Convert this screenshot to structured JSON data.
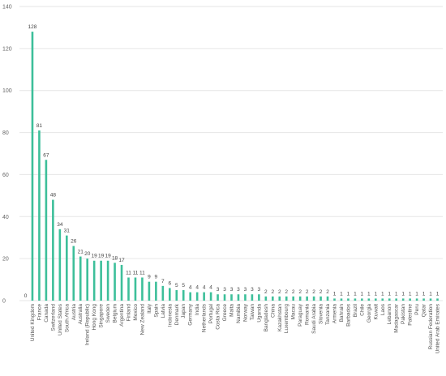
{
  "chart_data": {
    "type": "bar",
    "title": "",
    "xlabel": "",
    "ylabel": "",
    "ylim": [
      0,
      140
    ],
    "yticks": [
      0,
      20,
      40,
      60,
      80,
      100,
      120,
      140
    ],
    "grid": true,
    "legend": "none",
    "bar_color": "#3dbf9a",
    "grid_color": "#e6e6e6",
    "categories": [
      "",
      "United Kingdom",
      "France",
      "Canada",
      "Switzerland",
      "United States",
      "South Africa",
      "Austria",
      "Australia",
      "Ireland (Republic)",
      "Hong Kong",
      "Singapore",
      "Sweden",
      "Belgium",
      "Argentina",
      "Finland",
      "Mexico",
      "New Zealand",
      "Italy",
      "Spain",
      "Latvia",
      "Indonesia",
      "Denmark",
      "Japan",
      "Germany",
      "India",
      "Netherlands",
      "Portugal",
      "Costa Rica",
      "Greece",
      "Malta",
      "Namibia",
      "Norway",
      "Taiwan",
      "Uganda",
      "Bangladesh",
      "China",
      "Kazakhstan",
      "Luxembourg",
      "Macau",
      "Paraguay",
      "Romania",
      "Saudi Arabia",
      "Slovenia",
      "Tanzania",
      "Armenia",
      "Bahrain",
      "Barbados",
      "Brazil",
      "Chile",
      "Georgia",
      "Kuwait",
      "Laos",
      "Lebanon",
      "Madagascar",
      "Pakistan",
      "Palestine",
      "Peru",
      "Qatar",
      "Russian Federation",
      "United Arab Emirates"
    ],
    "values": [
      0,
      128,
      81,
      67,
      48,
      34,
      31,
      26,
      21,
      20,
      19,
      19,
      19,
      18,
      17,
      11,
      11,
      11,
      9,
      9,
      7,
      6,
      5,
      5,
      4,
      4,
      4,
      4,
      3,
      3,
      3,
      3,
      3,
      3,
      3,
      2,
      2,
      2,
      2,
      2,
      2,
      2,
      2,
      2,
      2,
      1,
      1,
      1,
      1,
      1,
      1,
      1,
      1,
      1,
      1,
      1,
      1,
      1,
      1,
      1,
      1
    ]
  }
}
